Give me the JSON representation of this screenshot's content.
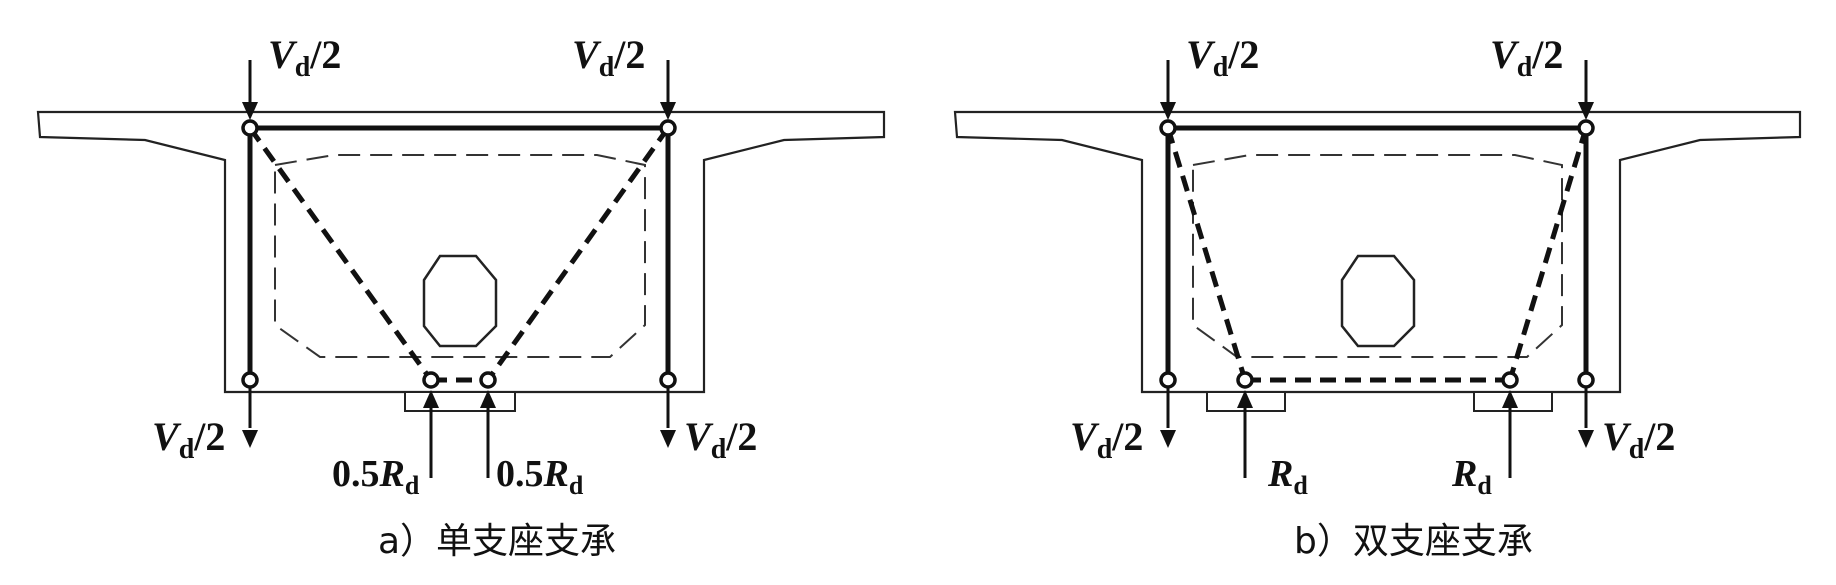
{
  "panels": [
    {
      "id": "a",
      "caption": "a）单支座支承",
      "loads": {
        "top_left": {
          "main": "V",
          "sub": "d",
          "rest": "/2"
        },
        "top_right": {
          "main": "V",
          "sub": "d",
          "rest": "/2"
        },
        "bottom_left": {
          "main": "V",
          "sub": "d",
          "rest": "/2"
        },
        "bottom_right": {
          "main": "V",
          "sub": "d",
          "rest": "/2"
        }
      },
      "reactions": [
        {
          "coef": "0.5",
          "main": "R",
          "sub": "d"
        },
        {
          "coef": "0.5",
          "main": "R",
          "sub": "d"
        }
      ]
    },
    {
      "id": "b",
      "caption": "b）双支座支承",
      "loads": {
        "top_left": {
          "main": "V",
          "sub": "d",
          "rest": "/2"
        },
        "top_right": {
          "main": "V",
          "sub": "d",
          "rest": "/2"
        },
        "bottom_left": {
          "main": "V",
          "sub": "d",
          "rest": "/2"
        },
        "bottom_right": {
          "main": "V",
          "sub": "d",
          "rest": "/2"
        }
      },
      "reactions": [
        {
          "coef": "",
          "main": "R",
          "sub": "d"
        },
        {
          "coef": "",
          "main": "R",
          "sub": "d"
        }
      ]
    }
  ]
}
